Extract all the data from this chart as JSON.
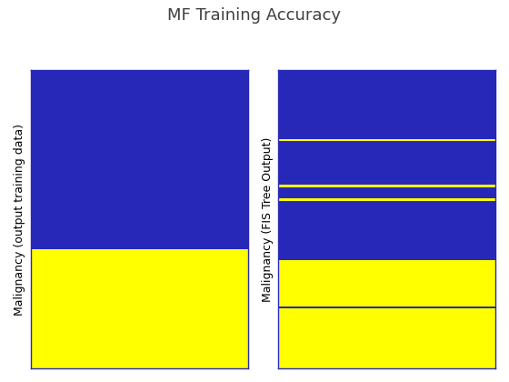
{
  "title": "MF Training Accuracy",
  "ax1_ylabel": "Malignancy (output training data)",
  "ax2_ylabel": "Malignancy (FIS Tree Output)",
  "blue_color": "#2828B8",
  "yellow_color": "#FFFF00",
  "background_color": "#FFFFFF",
  "ax1_data": [
    2,
    2,
    2,
    2,
    2,
    2,
    2,
    2,
    2,
    2,
    2,
    2,
    2,
    2,
    2,
    2,
    2,
    2,
    2,
    2,
    2,
    2,
    2,
    2,
    2,
    2,
    2,
    2,
    2,
    2,
    2,
    2,
    2,
    2,
    2,
    2,
    2,
    2,
    2,
    2,
    2,
    2,
    2,
    2,
    2,
    2,
    2,
    2,
    2,
    2,
    2,
    2,
    2,
    2,
    2,
    2,
    2,
    2,
    2,
    2,
    1,
    1,
    1,
    1,
    1,
    1,
    1,
    1,
    1,
    1,
    1,
    1,
    1,
    1,
    1,
    1,
    1,
    1,
    1,
    1,
    1,
    1,
    1,
    1,
    1,
    1,
    1,
    1,
    1,
    1,
    1,
    1,
    1,
    1,
    1,
    1,
    1,
    1,
    1,
    1
  ],
  "ax2_data": [
    2,
    2,
    2,
    2,
    2,
    2,
    2,
    2,
    2,
    2,
    2,
    2,
    2,
    2,
    2,
    2,
    2,
    2,
    2,
    2,
    2,
    2,
    2,
    2,
    2,
    2,
    2,
    2,
    2,
    2,
    1,
    2,
    2,
    2,
    2,
    2,
    2,
    2,
    2,
    2,
    2,
    2,
    2,
    2,
    2,
    2,
    2,
    2,
    2,
    2,
    1,
    2,
    2,
    2,
    2,
    2,
    1,
    2,
    2,
    2,
    2,
    2,
    2,
    2,
    2,
    2,
    2,
    2,
    2,
    2,
    2,
    2,
    2,
    2,
    2,
    2,
    2,
    2,
    2,
    2,
    2,
    2,
    2,
    1,
    1,
    1,
    1,
    1,
    1,
    1,
    1,
    1,
    1,
    1,
    1,
    1,
    1,
    1,
    1,
    1,
    1,
    1,
    1,
    2,
    1,
    1,
    1,
    1,
    1,
    1,
    1,
    1,
    1,
    1,
    1,
    1,
    1,
    1,
    1,
    1,
    1,
    1,
    1,
    1,
    1,
    1,
    1,
    1,
    1,
    1
  ]
}
